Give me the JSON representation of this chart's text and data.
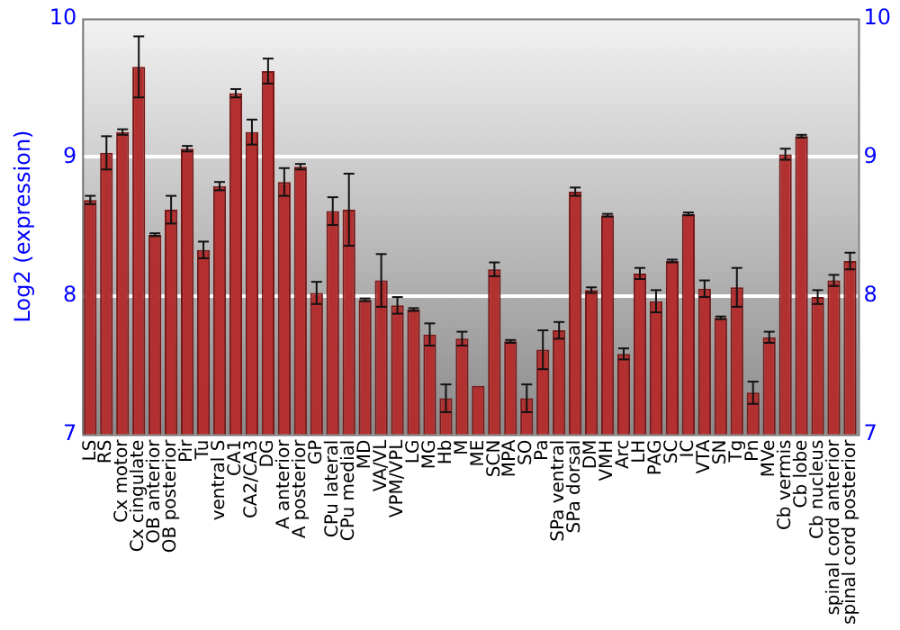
{
  "chart_data": {
    "type": "bar",
    "ylabel": "Log2 (expression)",
    "categories": [
      "LS",
      "RS",
      "Cx motor",
      "Cx cingulate",
      "OB anterior",
      "OB posterior",
      "Pir",
      "Tu",
      "ventral S",
      "CA1",
      "CA2/CA3",
      "DG",
      "A anterior",
      "A posterior",
      "GP",
      "CPu lateral",
      "CPu medial",
      "MD",
      "VA/VL",
      "VPM/VPL",
      "LG",
      "MG",
      "Hb",
      "M",
      "ME",
      "SCN",
      "MPA",
      "SO",
      "Pa",
      "SPa ventral",
      "SPa dorsal",
      "DM",
      "VMH",
      "Arc",
      "LH",
      "PAG",
      "SC",
      "IC",
      "VTA",
      "SN",
      "Tg",
      "Pn",
      "MVe",
      "Cb vermis",
      "Cb lobe",
      "Cb nucleus",
      "spinal cord anterior",
      "spinal cord posterior"
    ],
    "values": [
      8.69,
      9.03,
      9.18,
      9.65,
      8.44,
      8.62,
      9.06,
      8.33,
      8.79,
      9.46,
      9.18,
      9.62,
      8.82,
      8.93,
      8.02,
      8.61,
      8.62,
      7.97,
      8.11,
      7.93,
      7.9,
      7.72,
      7.26,
      7.69,
      7.35,
      8.19,
      7.67,
      7.26,
      7.61,
      7.75,
      8.75,
      8.04,
      8.58,
      7.58,
      8.16,
      7.96,
      8.25,
      8.59,
      8.05,
      7.84,
      8.06,
      7.3,
      7.7,
      9.02,
      9.15,
      7.99,
      8.11,
      8.25
    ],
    "errors": [
      0.03,
      0.12,
      0.02,
      0.22,
      0.01,
      0.1,
      0.02,
      0.06,
      0.03,
      0.03,
      0.09,
      0.09,
      0.1,
      0.02,
      0.08,
      0.1,
      0.26,
      0.01,
      0.19,
      0.06,
      0.01,
      0.08,
      0.1,
      0.05,
      null,
      0.05,
      0.01,
      0.1,
      0.14,
      0.06,
      0.03,
      0.02,
      0.01,
      0.04,
      0.04,
      0.08,
      0.01,
      0.01,
      0.06,
      0.01,
      0.14,
      0.08,
      0.04,
      0.04,
      0.01,
      0.05,
      0.04,
      0.06
    ],
    "color": "#b33030",
    "ylim": [
      7,
      10
    ],
    "yticks": [
      7,
      8,
      9,
      10
    ],
    "y2lim": [
      7,
      10
    ],
    "y2ticks": [
      7,
      8,
      9,
      10
    ],
    "grid": "y",
    "legend": false
  }
}
